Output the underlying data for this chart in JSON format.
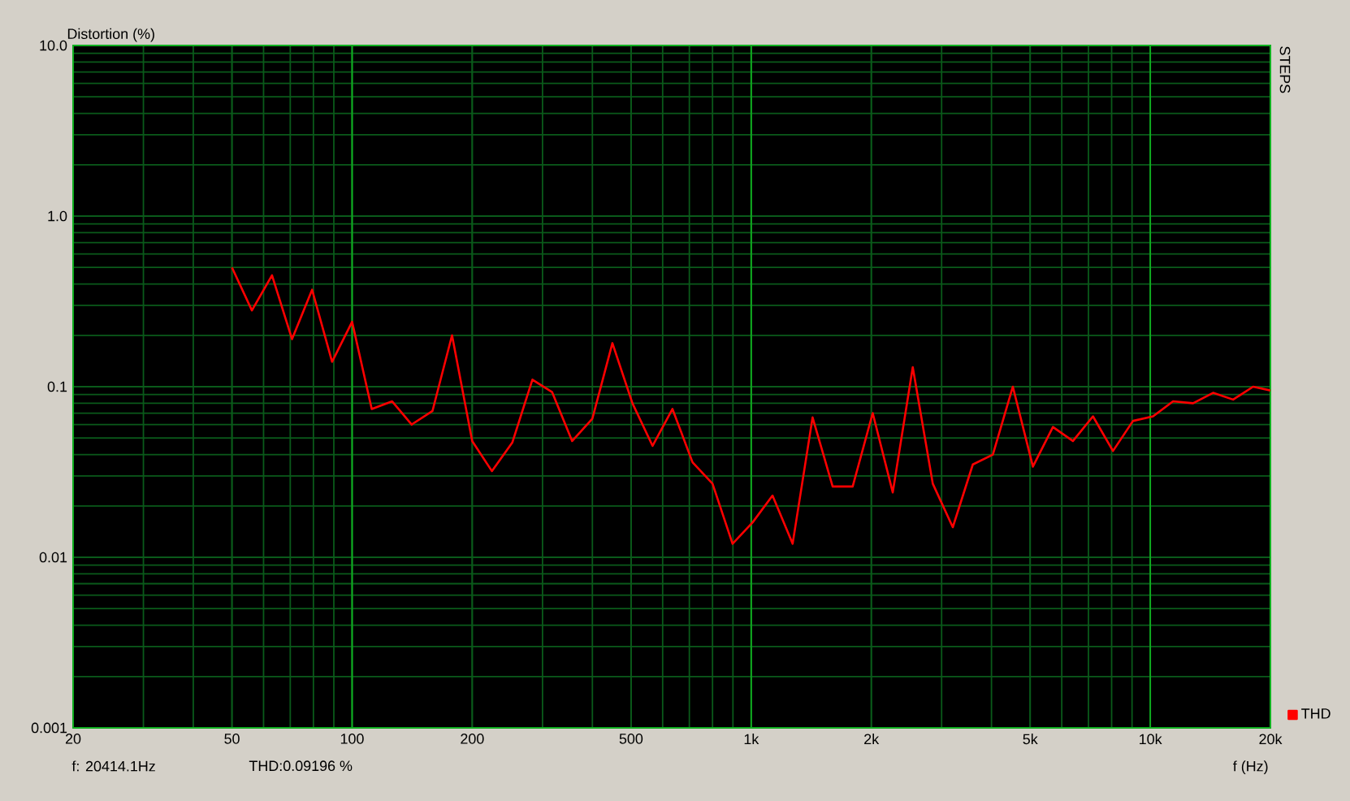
{
  "chart_data": {
    "type": "line",
    "ylabel": "Distortion (%)",
    "xlabel": "f (Hz)",
    "log": "xy",
    "grid": true,
    "legend": "bottom right",
    "marker": "none",
    "line_style": "solid",
    "xlim": [
      20,
      20000
    ],
    "ylim": [
      0.001,
      10
    ],
    "xticks": [
      20,
      50,
      100,
      200,
      500,
      {
        "value": 1000,
        "label": "1k"
      },
      {
        "value": 2000,
        "label": "2k"
      },
      {
        "value": 5000,
        "label": "5k"
      },
      {
        "value": 10000,
        "label": "10k"
      },
      {
        "value": 20000,
        "label": "20k"
      }
    ],
    "yticks": [
      0.001,
      0.01,
      0.1,
      {
        "value": 1,
        "label": "1.0"
      },
      {
        "value": 10,
        "label": "10.0"
      }
    ],
    "x": [
      50,
      56.1,
      63,
      70.7,
      79.4,
      89.1,
      100,
      112,
      126,
      141,
      159,
      178,
      200,
      224,
      252,
      283,
      317,
      356,
      400,
      449,
      504,
      566,
      635,
      713,
      800,
      898,
      1008,
      1131,
      1270,
      1425,
      1600,
      1796,
      2016,
      2263,
      2540,
      2851,
      3200,
      3592,
      4032,
      4525,
      5080,
      5702,
      6400,
      7184,
      8063,
      9051,
      10159,
      11404,
      12800,
      14368,
      16127,
      18102,
      20000
    ],
    "series": [
      {
        "name": "THD",
        "color": "#ff0000",
        "values": [
          0.5,
          0.28,
          0.45,
          0.19,
          0.37,
          0.14,
          0.24,
          0.074,
          0.082,
          0.06,
          0.072,
          0.2,
          0.048,
          0.032,
          0.047,
          0.11,
          0.093,
          0.048,
          0.065,
          0.18,
          0.08,
          0.045,
          0.074,
          0.036,
          0.027,
          0.012,
          0.016,
          0.023,
          0.012,
          0.066,
          0.026,
          0.026,
          0.07,
          0.024,
          0.13,
          0.027,
          0.015,
          0.035,
          0.04,
          0.1,
          0.034,
          0.058,
          0.048,
          0.067,
          0.042,
          0.063,
          0.067,
          0.082,
          0.08,
          0.092,
          0.084,
          0.1,
          0.095
        ]
      }
    ],
    "annotations": [
      "STEPS",
      "f: 20414.1Hz",
      "THD:0.09196  %"
    ]
  }
}
